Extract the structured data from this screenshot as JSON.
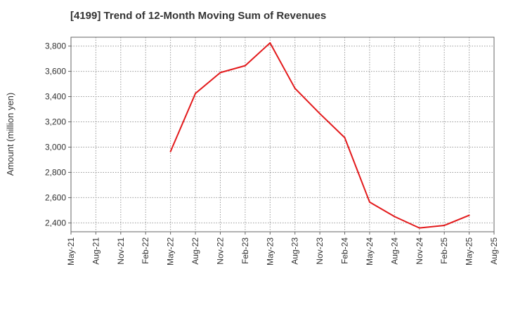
{
  "chart_data": {
    "type": "line",
    "title": "[4199]  Trend of 12-Month Moving Sum of Revenues",
    "ylabel": "Amount (million yen)",
    "xlabel": "",
    "x_ticks": [
      "May-21",
      "Aug-21",
      "Nov-21",
      "Feb-22",
      "May-22",
      "Aug-22",
      "Nov-22",
      "Feb-23",
      "May-23",
      "Aug-23",
      "Nov-23",
      "Feb-24",
      "May-24",
      "Aug-24",
      "Nov-24",
      "Feb-25",
      "May-25",
      "Aug-25"
    ],
    "y_ticks": [
      2400,
      2600,
      2800,
      3000,
      3200,
      3400,
      3600,
      3800
    ],
    "y_tick_labels": [
      "2,400",
      "2,600",
      "2,800",
      "3,000",
      "3,200",
      "3,400",
      "3,600",
      "3,800"
    ],
    "ylim": [
      2330,
      3870
    ],
    "grid": true,
    "series": [
      {
        "color": "#e31a1c",
        "x": [
          "May-22",
          "Aug-22",
          "Nov-22",
          "Feb-23",
          "May-23",
          "Aug-23",
          "Nov-23",
          "Feb-24",
          "May-24",
          "Aug-24",
          "Nov-24",
          "Feb-25",
          "May-25"
        ],
        "values": [
          2965,
          3425,
          3590,
          3645,
          3825,
          3465,
          3265,
          3075,
          2565,
          2450,
          2360,
          2380,
          2460
        ]
      }
    ]
  }
}
